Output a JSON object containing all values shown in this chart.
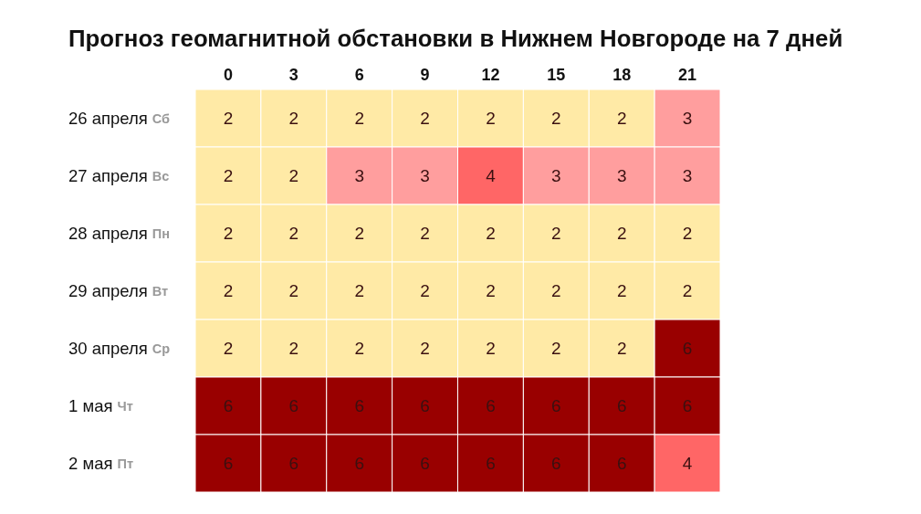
{
  "chart_data": {
    "type": "heatmap",
    "title": "Прогноз геомагнитной обстановки в Нижнем Новгороде на 7 дней",
    "categories": [
      "0",
      "3",
      "6",
      "9",
      "12",
      "15",
      "18",
      "21"
    ],
    "y_categories": [
      "26 апреля",
      "27 апреля",
      "28 апреля",
      "29 апреля",
      "30 апреля",
      "1 мая",
      "2 мая"
    ],
    "y2_categories": [
      "Сб",
      "Вс",
      "Пн",
      "Вт",
      "Ср",
      "Чт",
      "Пт"
    ],
    "cells": [
      [
        2,
        2,
        2,
        2,
        2,
        2,
        2,
        3
      ],
      [
        2,
        2,
        3,
        3,
        4,
        3,
        3,
        3
      ],
      [
        2,
        2,
        2,
        2,
        2,
        2,
        2,
        2
      ],
      [
        2,
        2,
        2,
        2,
        2,
        2,
        2,
        2
      ],
      [
        2,
        2,
        2,
        2,
        2,
        2,
        2,
        6
      ],
      [
        6,
        6,
        6,
        6,
        6,
        6,
        6,
        6
      ],
      [
        6,
        6,
        6,
        6,
        6,
        6,
        6,
        4
      ]
    ],
    "colors": [
      [
        "#ffeaa6",
        "#ffeaa6",
        "#ffeaa6",
        "#ffeaa6",
        "#ffeaa6",
        "#ffeaa6",
        "#ffeaa6",
        "#ff9e9e"
      ],
      [
        "#ffeaa6",
        "#ffeaa6",
        "#ff9e9e",
        "#ff9e9e",
        "#ff6666",
        "#ff9e9e",
        "#ff9e9e",
        "#ff9e9e"
      ],
      [
        "#ffeaa6",
        "#ffeaa6",
        "#ffeaa6",
        "#ffeaa6",
        "#ffeaa6",
        "#ffeaa6",
        "#ffeaa6",
        "#ffeaa6"
      ],
      [
        "#ffeaa6",
        "#ffeaa6",
        "#ffeaa6",
        "#ffeaa6",
        "#ffeaa6",
        "#ffeaa6",
        "#ffeaa6",
        "#ffeaa6"
      ],
      [
        "#ffeaa6",
        "#ffeaa6",
        "#ffeaa6",
        "#ffeaa6",
        "#ffeaa6",
        "#ffeaa6",
        "#ffeaa6",
        "#990000"
      ],
      [
        "#990000",
        "#990000",
        "#990000",
        "#990000",
        "#990000",
        "#990000",
        "#990000",
        "#990000"
      ],
      [
        "#990000",
        "#990000",
        "#990000",
        "#990000",
        "#990000",
        "#990000",
        "#990000",
        "#ff6666"
      ]
    ],
    "data_labels": true
  }
}
